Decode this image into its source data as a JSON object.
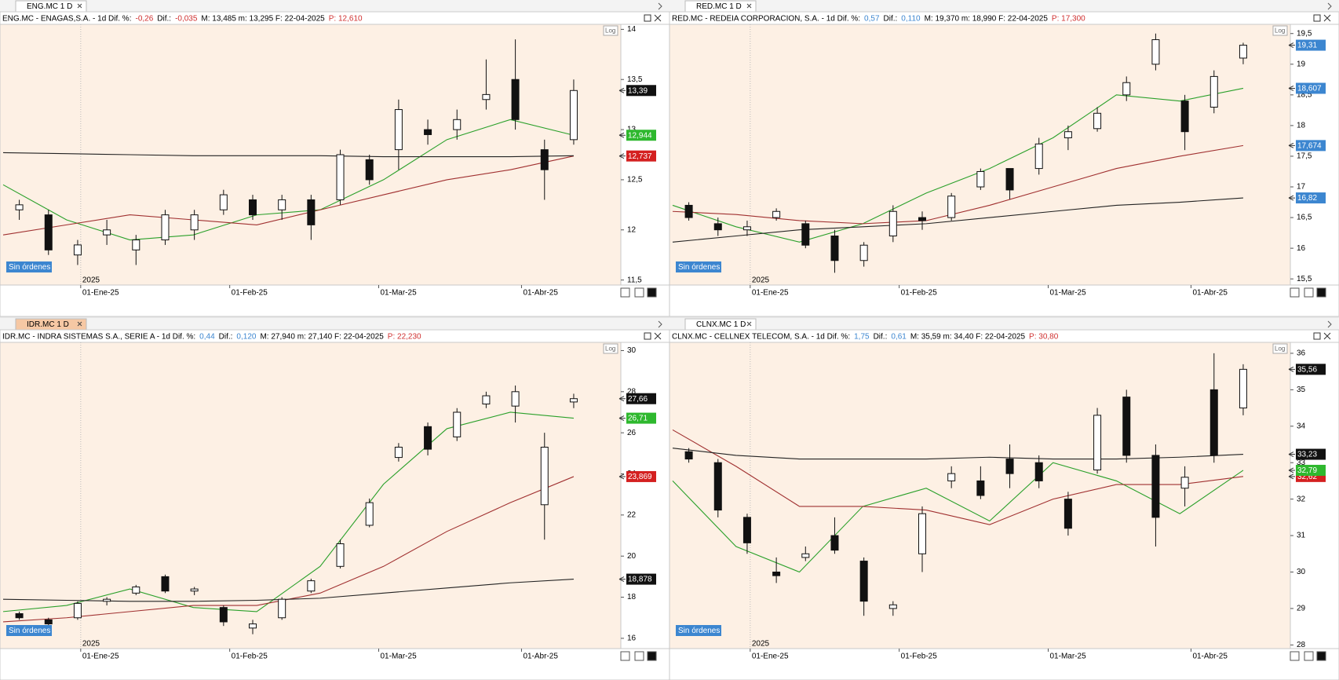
{
  "chart_data": [
    {
      "type": "candlestick",
      "tab": "ENG.MC 1 D",
      "tab_active": false,
      "header": [
        {
          "text": "ENG.MC - ENAGAS,S.A. -  1d  Dif. %:"
        },
        {
          "text": "-0,26",
          "color": "#d03030"
        },
        {
          "text": "Dif.:"
        },
        {
          "text": "-0,035",
          "color": "#d03030"
        },
        {
          "text": "M: 13,485  m: 13,295  F: 22-04-2025"
        },
        {
          "text": "P: 12,610",
          "color": "#d03030"
        }
      ],
      "ylim": [
        11.45,
        14.05
      ],
      "yticks": [
        {
          "value": 11.5,
          "label": "11,5"
        },
        12,
        {
          "value": 12.5,
          "label": "12,5"
        },
        13,
        {
          "value": 13.5,
          "label": "13,5"
        },
        14
      ],
      "log_button": "Log",
      "status": "Sin órdenes",
      "year_label": "2025",
      "date_labels": [
        "01-Ene-25",
        "01-Feb-25",
        "01-Mar-25",
        "01-Abr-25"
      ],
      "open": [
        12.2,
        12.15,
        11.75,
        11.95,
        11.8,
        11.9,
        12.0,
        12.2,
        12.3,
        12.2,
        12.3,
        12.3,
        12.7,
        12.8,
        13.0,
        13.0,
        13.3,
        13.5,
        12.8,
        12.9
      ],
      "high": [
        12.3,
        12.2,
        11.9,
        12.1,
        11.95,
        12.2,
        12.2,
        12.4,
        12.35,
        12.35,
        12.35,
        12.8,
        12.75,
        13.3,
        13.1,
        13.2,
        13.7,
        13.9,
        12.9,
        13.5
      ],
      "low": [
        12.1,
        11.75,
        11.65,
        11.85,
        11.65,
        11.85,
        11.9,
        12.15,
        12.1,
        12.1,
        11.9,
        12.25,
        12.45,
        12.6,
        12.85,
        12.9,
        13.2,
        13.0,
        12.3,
        12.85
      ],
      "close": [
        12.25,
        11.8,
        11.85,
        12.0,
        11.9,
        12.15,
        12.15,
        12.35,
        12.15,
        12.3,
        12.05,
        12.75,
        12.5,
        13.2,
        12.95,
        13.1,
        13.35,
        13.1,
        12.6,
        13.39
      ],
      "ma_lines": [
        {
          "color": "#2aa02a",
          "values": [
            12.45,
            12.1,
            11.9,
            11.95,
            12.15,
            12.2,
            12.5,
            12.9,
            13.1,
            12.944
          ]
        },
        {
          "color": "#a03030",
          "values": [
            11.95,
            12.05,
            12.15,
            12.1,
            12.05,
            12.2,
            12.35,
            12.5,
            12.6,
            12.737
          ]
        },
        {
          "color": "#222222",
          "values": [
            12.77,
            12.76,
            12.75,
            12.74,
            12.74,
            12.74,
            12.73,
            12.73,
            12.73,
            12.74
          ]
        }
      ],
      "price_labels": [
        {
          "value": 13.39,
          "label": "13,39",
          "bg": "#111111"
        },
        {
          "value": 12.944,
          "label": "12,944",
          "bg": "#2eb82e"
        },
        {
          "value": 12.737,
          "label": "12,737",
          "bg": "#d42020"
        }
      ]
    },
    {
      "type": "candlestick",
      "tab": "RED.MC 1 D",
      "tab_active": false,
      "header": [
        {
          "text": "RED.MC - REDEIA CORPORACION, S.A. -  1d  Dif. %:"
        },
        {
          "text": "0,57",
          "color": "#3c86d0"
        },
        {
          "text": "Dif.:"
        },
        {
          "text": "0,110",
          "color": "#3c86d0"
        },
        {
          "text": "M: 19,370  m: 18,990  F: 22-04-2025"
        },
        {
          "text": "P: 17,300",
          "color": "#d03030"
        }
      ],
      "ylim": [
        15.4,
        19.65
      ],
      "yticks": [
        {
          "value": 15.5,
          "label": "15,5"
        },
        16,
        {
          "value": 16.5,
          "label": "16,5"
        },
        17,
        {
          "value": 17.5,
          "label": "17,5"
        },
        18,
        {
          "value": 18.5,
          "label": "18,5"
        },
        19,
        {
          "value": 19.5,
          "label": "19,5"
        }
      ],
      "log_button": "Log",
      "status": "Sin órdenes",
      "year_label": "2025",
      "date_labels": [
        "01-Ene-25",
        "01-Feb-25",
        "01-Mar-25",
        "01-Abr-25"
      ],
      "open": [
        16.7,
        16.4,
        16.3,
        16.5,
        16.4,
        16.2,
        15.8,
        16.2,
        16.5,
        16.5,
        17.0,
        17.3,
        17.3,
        17.8,
        17.95,
        18.5,
        19.0,
        18.4,
        18.3,
        19.1
      ],
      "high": [
        16.75,
        16.5,
        16.45,
        16.65,
        16.45,
        16.3,
        16.1,
        16.7,
        16.6,
        16.9,
        17.3,
        17.3,
        17.8,
        18.0,
        18.3,
        18.8,
        19.5,
        18.5,
        18.9,
        19.35
      ],
      "low": [
        16.45,
        16.2,
        16.2,
        16.45,
        16.0,
        15.6,
        15.7,
        16.1,
        16.3,
        16.45,
        16.95,
        16.8,
        17.2,
        17.6,
        17.9,
        18.4,
        18.9,
        17.6,
        18.2,
        19.0
      ],
      "close": [
        16.5,
        16.3,
        16.35,
        16.6,
        16.05,
        15.8,
        16.05,
        16.6,
        16.45,
        16.85,
        17.25,
        16.95,
        17.7,
        17.9,
        18.2,
        18.7,
        19.4,
        17.9,
        18.8,
        19.31
      ],
      "ma_lines": [
        {
          "color": "#2aa02a",
          "values": [
            16.7,
            16.35,
            16.1,
            16.4,
            16.9,
            17.3,
            17.8,
            18.5,
            18.4,
            18.607
          ]
        },
        {
          "color": "#a03030",
          "values": [
            16.6,
            16.55,
            16.45,
            16.4,
            16.45,
            16.7,
            17.0,
            17.3,
            17.5,
            17.674
          ]
        },
        {
          "color": "#222222",
          "values": [
            16.1,
            16.2,
            16.3,
            16.35,
            16.4,
            16.5,
            16.6,
            16.7,
            16.75,
            16.82
          ]
        }
      ],
      "price_labels": [
        {
          "value": 19.31,
          "label": "19,31",
          "bg": "#3c86d0"
        },
        {
          "value": 18.607,
          "label": "18,607",
          "bg": "#3c86d0"
        },
        {
          "value": 17.674,
          "label": "17,674",
          "bg": "#3c86d0"
        },
        {
          "value": 16.82,
          "label": "16,82",
          "bg": "#3c86d0"
        }
      ]
    },
    {
      "type": "candlestick",
      "tab": "IDR.MC 1 D",
      "tab_active": true,
      "header": [
        {
          "text": "IDR.MC - INDRA SISTEMAS S.A., SERIE A -  1d  Dif. %:"
        },
        {
          "text": "0,44",
          "color": "#3c86d0"
        },
        {
          "text": "Dif.:"
        },
        {
          "text": "0,120",
          "color": "#3c86d0"
        },
        {
          "text": "M: 27,940  m: 27,140  F: 22-04-2025"
        },
        {
          "text": "P: 22,230",
          "color": "#d03030"
        }
      ],
      "ylim": [
        15.5,
        30.4
      ],
      "yticks": [
        16,
        18,
        20,
        22,
        24,
        26,
        28,
        30
      ],
      "log_button": "Log",
      "status": "Sin órdenes",
      "year_label": "2025",
      "date_labels": [
        "01-Ene-25",
        "01-Feb-25",
        "01-Mar-25",
        "01-Abr-25"
      ],
      "open": [
        17.2,
        16.9,
        17.0,
        17.8,
        18.2,
        19.0,
        18.3,
        17.5,
        16.5,
        17.0,
        18.3,
        19.5,
        21.5,
        24.8,
        26.3,
        25.8,
        27.4,
        27.3,
        22.5,
        27.5
      ],
      "high": [
        17.3,
        17.0,
        17.8,
        18.0,
        18.6,
        19.1,
        18.5,
        17.6,
        16.9,
        18.0,
        18.9,
        20.8,
        22.8,
        25.5,
        26.5,
        27.2,
        28.0,
        28.3,
        26.0,
        27.9
      ],
      "low": [
        16.9,
        16.5,
        16.9,
        17.6,
        18.1,
        18.2,
        18.1,
        16.6,
        16.2,
        16.9,
        18.2,
        19.4,
        21.4,
        24.6,
        24.9,
        25.6,
        27.2,
        26.5,
        20.8,
        27.2
      ],
      "close": [
        17.0,
        16.7,
        17.7,
        17.9,
        18.5,
        18.3,
        18.4,
        16.8,
        16.7,
        17.9,
        18.8,
        20.6,
        22.6,
        25.3,
        25.2,
        27.0,
        27.8,
        28.0,
        25.3,
        27.66
      ],
      "ma_lines": [
        {
          "color": "#2aa02a",
          "values": [
            17.3,
            17.6,
            18.4,
            17.5,
            17.3,
            19.5,
            23.5,
            26.2,
            27.0,
            26.71
          ]
        },
        {
          "color": "#a03030",
          "values": [
            16.8,
            17.0,
            17.3,
            17.6,
            17.6,
            18.2,
            19.5,
            21.2,
            22.6,
            23.869
          ]
        },
        {
          "color": "#222222",
          "values": [
            17.9,
            17.85,
            17.8,
            17.8,
            17.85,
            17.95,
            18.2,
            18.45,
            18.7,
            18.878
          ]
        }
      ],
      "price_labels": [
        {
          "value": 27.66,
          "label": "27,66",
          "bg": "#111111"
        },
        {
          "value": 26.71,
          "label": "26,71",
          "bg": "#2eb82e"
        },
        {
          "value": 23.869,
          "label": "23,869",
          "bg": "#d42020"
        },
        {
          "value": 18.878,
          "label": "18,878",
          "bg": "#111111"
        }
      ]
    },
    {
      "type": "candlestick",
      "tab": "CLNX.MC 1 D",
      "tab_active": false,
      "header": [
        {
          "text": "CLNX.MC - CELLNEX TELECOM, S.A. -  1d  Dif. %:"
        },
        {
          "text": "1,75",
          "color": "#3c86d0"
        },
        {
          "text": "Dif.:"
        },
        {
          "text": "0,61",
          "color": "#3c86d0"
        },
        {
          "text": "M: 35,59  m: 34,40  F: 22-04-2025"
        },
        {
          "text": "P: 30,80",
          "color": "#d03030"
        }
      ],
      "ylim": [
        27.9,
        36.3
      ],
      "yticks": [
        28,
        29,
        30,
        31,
        32,
        33,
        34,
        35,
        36
      ],
      "log_button": "Log",
      "status": "Sin órdenes",
      "year_label": "2025",
      "date_labels": [
        "01-Ene-25",
        "01-Feb-25",
        "01-Mar-25",
        "01-Abr-25"
      ],
      "open": [
        33.3,
        33.0,
        31.5,
        30.0,
        30.4,
        31.0,
        30.3,
        29.0,
        30.5,
        32.5,
        32.5,
        33.1,
        33.0,
        32.0,
        32.8,
        34.8,
        33.2,
        32.3,
        35.0,
        34.5
      ],
      "high": [
        33.4,
        33.1,
        31.6,
        30.4,
        30.7,
        31.5,
        30.4,
        29.2,
        31.8,
        32.9,
        32.9,
        33.5,
        33.2,
        32.2,
        34.5,
        35.0,
        33.5,
        32.9,
        36.0,
        35.7
      ],
      "low": [
        33.0,
        31.5,
        30.5,
        29.7,
        30.3,
        30.5,
        28.8,
        28.8,
        30.0,
        32.3,
        32.0,
        32.3,
        32.3,
        31.0,
        32.7,
        33.0,
        30.7,
        31.8,
        33.0,
        34.3
      ],
      "close": [
        33.1,
        31.7,
        30.8,
        29.9,
        30.5,
        30.6,
        29.2,
        29.1,
        31.6,
        32.7,
        32.1,
        32.7,
        32.5,
        31.2,
        34.3,
        33.2,
        31.5,
        32.6,
        33.2,
        35.56
      ],
      "ma_lines": [
        {
          "color": "#2aa02a",
          "values": [
            32.5,
            30.7,
            30.0,
            31.8,
            32.3,
            31.4,
            33.0,
            32.5,
            31.6,
            32.79
          ]
        },
        {
          "color": "#a03030",
          "values": [
            33.9,
            32.9,
            31.8,
            31.8,
            31.7,
            31.3,
            32.0,
            32.4,
            32.4,
            32.62
          ]
        },
        {
          "color": "#222222",
          "values": [
            33.4,
            33.2,
            33.1,
            33.1,
            33.1,
            33.15,
            33.1,
            33.1,
            33.15,
            33.23
          ]
        }
      ],
      "price_labels": [
        {
          "value": 35.56,
          "label": "35,56",
          "bg": "#111111"
        },
        {
          "value": 33.23,
          "label": "33,23",
          "bg": "#111111"
        },
        {
          "value": 32.62,
          "label": "32,62",
          "bg": "#d42020"
        },
        {
          "value": 32.79,
          "label": "32,79",
          "bg": "#2eb82e"
        }
      ]
    }
  ]
}
